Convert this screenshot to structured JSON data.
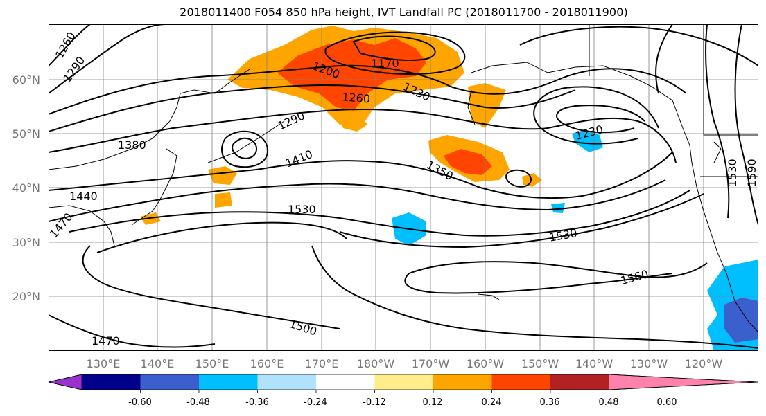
{
  "title": "2018011400 F054 850 hPa height, IVT Landfall PC (2018011700 - 2018011900)",
  "lat_labels": [
    "60°N",
    "50°N",
    "40°N",
    "30°N",
    "20°N"
  ],
  "lon_labels": [
    "130°E",
    "140°E",
    "150°E",
    "160°E",
    "170°E",
    "180°W",
    "170°W",
    "160°W",
    "150°W",
    "140°W",
    "130°W",
    "120°W"
  ],
  "contour_labels": [
    "1260",
    "1290",
    "1200",
    "1170",
    "1230",
    "1260",
    "1290",
    "1380",
    "1410",
    "1350",
    "1230",
    "1440",
    "1470",
    "1530",
    "1530",
    "1560",
    "1500",
    "1470",
    "1530",
    "1590"
  ],
  "colorbar": {
    "colors": [
      "#9932cc",
      "#00008b",
      "#3b5fcd",
      "#00bfff",
      "#b0e2ff",
      "#ffffff",
      "#ffec8b",
      "#ffa500",
      "#ff4500",
      "#b22222",
      "#ff82ab"
    ],
    "tick_labels": [
      "-0.60",
      "-0.48",
      "-0.36",
      "-0.24",
      "-0.12",
      "0.12",
      "0.24",
      "0.36",
      "0.48",
      "0.60"
    ]
  }
}
